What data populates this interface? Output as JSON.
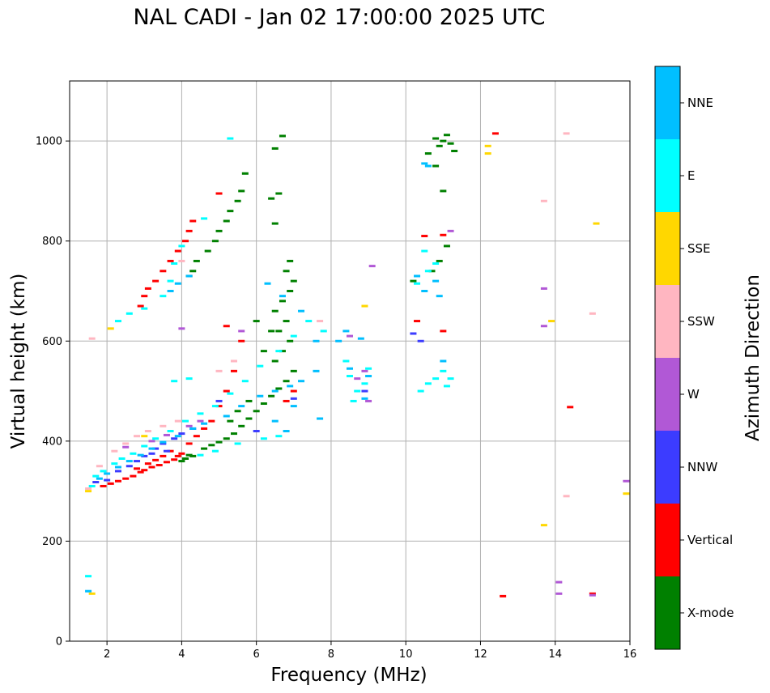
{
  "chart_data": {
    "type": "scatter",
    "title": "NAL CADI - Jan 02 17:00:00 2025 UTC",
    "xlabel": "Frequency (MHz)",
    "ylabel": "Virtual height (km)",
    "xlim": [
      1,
      16
    ],
    "ylim": [
      0,
      1120
    ],
    "xticks": [
      2,
      4,
      6,
      8,
      10,
      12,
      14,
      16
    ],
    "yticks": [
      0,
      200,
      400,
      600,
      800,
      1000
    ],
    "grid": true,
    "colorbar": {
      "label": "Azimuth Direction",
      "categories": [
        {
          "name": "X-mode",
          "color": "#008000"
        },
        {
          "name": "Vertical",
          "color": "#ff0000"
        },
        {
          "name": "NNW",
          "color": "#3c3cff"
        },
        {
          "name": "W",
          "color": "#b158d6"
        },
        {
          "name": "SSW",
          "color": "#ffb6c1"
        },
        {
          "name": "SSE",
          "color": "#ffd700"
        },
        {
          "name": "E",
          "color": "#00ffff"
        },
        {
          "name": "NNE",
          "color": "#00bfff"
        }
      ]
    },
    "series": [
      {
        "name": "X-mode",
        "points": [
          [
            4.1,
            365
          ],
          [
            4.2,
            372
          ],
          [
            4.3,
            370
          ],
          [
            4.0,
            360
          ],
          [
            4.6,
            385
          ],
          [
            4.8,
            392
          ],
          [
            5.0,
            398
          ],
          [
            5.2,
            405
          ],
          [
            5.4,
            415
          ],
          [
            5.6,
            430
          ],
          [
            5.8,
            445
          ],
          [
            6.0,
            460
          ],
          [
            6.2,
            475
          ],
          [
            6.4,
            490
          ],
          [
            6.6,
            505
          ],
          [
            6.8,
            520
          ],
          [
            7.0,
            540
          ],
          [
            6.5,
            560
          ],
          [
            6.7,
            580
          ],
          [
            6.9,
            600
          ],
          [
            6.6,
            620
          ],
          [
            6.8,
            640
          ],
          [
            6.5,
            660
          ],
          [
            6.7,
            680
          ],
          [
            6.9,
            700
          ],
          [
            7.0,
            720
          ],
          [
            6.8,
            740
          ],
          [
            6.9,
            760
          ],
          [
            6.0,
            640
          ],
          [
            6.2,
            580
          ],
          [
            6.4,
            620
          ],
          [
            5.3,
            440
          ],
          [
            5.5,
            460
          ],
          [
            5.8,
            480
          ],
          [
            4.3,
            740
          ],
          [
            4.4,
            760
          ],
          [
            4.2,
            730
          ],
          [
            4.7,
            780
          ],
          [
            4.9,
            800
          ],
          [
            5.0,
            820
          ],
          [
            5.2,
            840
          ],
          [
            5.3,
            860
          ],
          [
            5.5,
            880
          ],
          [
            5.6,
            900
          ],
          [
            5.7,
            935
          ],
          [
            6.4,
            885
          ],
          [
            6.5,
            835
          ],
          [
            6.6,
            895
          ],
          [
            6.7,
            1010
          ],
          [
            6.5,
            985
          ],
          [
            10.8,
            1005
          ],
          [
            10.9,
            990
          ],
          [
            11.0,
            1000
          ],
          [
            11.1,
            1012
          ],
          [
            11.2,
            995
          ],
          [
            10.6,
            975
          ],
          [
            10.8,
            950
          ],
          [
            11.3,
            980
          ],
          [
            11.0,
            900
          ],
          [
            11.1,
            790
          ],
          [
            10.9,
            760
          ],
          [
            10.7,
            740
          ],
          [
            10.2,
            720
          ]
        ]
      },
      {
        "name": "Vertical",
        "points": [
          [
            1.9,
            310
          ],
          [
            2.1,
            315
          ],
          [
            2.3,
            320
          ],
          [
            2.5,
            325
          ],
          [
            2.7,
            330
          ],
          [
            2.9,
            338
          ],
          [
            3.0,
            342
          ],
          [
            3.2,
            348
          ],
          [
            3.4,
            352
          ],
          [
            3.6,
            358
          ],
          [
            3.8,
            363
          ],
          [
            3.9,
            370
          ],
          [
            4.0,
            375
          ],
          [
            2.8,
            345
          ],
          [
            3.1,
            355
          ],
          [
            3.3,
            362
          ],
          [
            3.5,
            370
          ],
          [
            3.7,
            380
          ],
          [
            4.2,
            395
          ],
          [
            4.4,
            410
          ],
          [
            4.6,
            425
          ],
          [
            4.8,
            440
          ],
          [
            5.0,
            470
          ],
          [
            5.2,
            500
          ],
          [
            5.4,
            540
          ],
          [
            5.6,
            600
          ],
          [
            5.2,
            630
          ],
          [
            2.9,
            670
          ],
          [
            3.0,
            690
          ],
          [
            3.1,
            705
          ],
          [
            3.3,
            720
          ],
          [
            3.5,
            740
          ],
          [
            3.7,
            760
          ],
          [
            3.9,
            780
          ],
          [
            4.1,
            800
          ],
          [
            4.2,
            820
          ],
          [
            4.3,
            840
          ],
          [
            5.0,
            895
          ],
          [
            6.8,
            480
          ],
          [
            7.0,
            500
          ],
          [
            10.5,
            810
          ],
          [
            11.0,
            812
          ],
          [
            11.0,
            620
          ],
          [
            10.3,
            640
          ],
          [
            12.4,
            1015
          ],
          [
            12.6,
            90
          ],
          [
            14.4,
            468
          ],
          [
            15.0,
            95
          ]
        ]
      },
      {
        "name": "NNW",
        "points": [
          [
            1.7,
            318
          ],
          [
            2.0,
            322
          ],
          [
            2.3,
            340
          ],
          [
            2.6,
            350
          ],
          [
            2.8,
            360
          ],
          [
            3.0,
            370
          ],
          [
            3.3,
            385
          ],
          [
            3.5,
            395
          ],
          [
            3.8,
            405
          ],
          [
            4.0,
            415
          ],
          [
            4.3,
            425
          ],
          [
            3.6,
            380
          ],
          [
            3.2,
            375
          ],
          [
            5.0,
            480
          ],
          [
            6.0,
            420
          ],
          [
            7.0,
            485
          ],
          [
            8.9,
            500
          ],
          [
            10.2,
            615
          ],
          [
            10.4,
            600
          ]
        ]
      },
      {
        "name": "W",
        "points": [
          [
            2.5,
            388
          ],
          [
            3.2,
            400
          ],
          [
            3.6,
            412
          ],
          [
            4.2,
            430
          ],
          [
            4.5,
            440
          ],
          [
            4.0,
            625
          ],
          [
            8.5,
            610
          ],
          [
            8.7,
            525
          ],
          [
            8.9,
            540
          ],
          [
            9.0,
            480
          ],
          [
            9.1,
            750
          ],
          [
            11.2,
            820
          ],
          [
            13.7,
            705
          ],
          [
            13.7,
            630
          ],
          [
            14.1,
            118
          ],
          [
            14.1,
            95
          ],
          [
            15.0,
            92
          ],
          [
            15.9,
            320
          ],
          [
            5.6,
            620
          ]
        ]
      },
      {
        "name": "SSW",
        "points": [
          [
            1.5,
            305
          ],
          [
            1.8,
            350
          ],
          [
            2.2,
            380
          ],
          [
            2.5,
            395
          ],
          [
            2.8,
            410
          ],
          [
            3.1,
            420
          ],
          [
            3.5,
            430
          ],
          [
            3.9,
            440
          ],
          [
            1.6,
            605
          ],
          [
            4.0,
            760
          ],
          [
            5.0,
            540
          ],
          [
            5.4,
            560
          ],
          [
            7.8,
            620
          ],
          [
            7.7,
            640
          ],
          [
            13.7,
            880
          ],
          [
            14.3,
            1015
          ],
          [
            15.0,
            655
          ],
          [
            14.3,
            290
          ]
        ]
      },
      {
        "name": "SSE",
        "points": [
          [
            1.5,
            300
          ],
          [
            1.6,
            95
          ],
          [
            2.1,
            625
          ],
          [
            3.0,
            410
          ],
          [
            8.9,
            670
          ],
          [
            12.2,
            990
          ],
          [
            12.2,
            975
          ],
          [
            13.9,
            640
          ],
          [
            15.1,
            835
          ],
          [
            15.9,
            295
          ],
          [
            13.7,
            232
          ]
        ]
      },
      {
        "name": "E",
        "points": [
          [
            1.6,
            310
          ],
          [
            1.7,
            330
          ],
          [
            1.9,
            340
          ],
          [
            2.2,
            355
          ],
          [
            2.4,
            365
          ],
          [
            2.7,
            375
          ],
          [
            3.0,
            390
          ],
          [
            3.3,
            405
          ],
          [
            3.7,
            420
          ],
          [
            4.1,
            440
          ],
          [
            4.5,
            455
          ],
          [
            4.9,
            470
          ],
          [
            5.3,
            495
          ],
          [
            5.7,
            520
          ],
          [
            6.1,
            550
          ],
          [
            6.6,
            580
          ],
          [
            7.0,
            610
          ],
          [
            7.4,
            640
          ],
          [
            7.8,
            620
          ],
          [
            8.4,
            560
          ],
          [
            8.5,
            530
          ],
          [
            8.7,
            500
          ],
          [
            8.6,
            480
          ],
          [
            8.9,
            515
          ],
          [
            9.0,
            545
          ],
          [
            10.6,
            515
          ],
          [
            10.8,
            525
          ],
          [
            11.0,
            540
          ],
          [
            11.2,
            525
          ],
          [
            10.4,
            500
          ],
          [
            11.1,
            510
          ],
          [
            6.6,
            410
          ],
          [
            6.2,
            405
          ],
          [
            5.5,
            395
          ],
          [
            4.9,
            380
          ],
          [
            4.5,
            372
          ],
          [
            3.8,
            520
          ],
          [
            4.2,
            525
          ],
          [
            2.3,
            640
          ],
          [
            2.6,
            655
          ],
          [
            3.0,
            665
          ],
          [
            3.5,
            690
          ],
          [
            3.7,
            720
          ],
          [
            3.8,
            755
          ],
          [
            4.0,
            790
          ],
          [
            4.6,
            845
          ],
          [
            10.3,
            715
          ],
          [
            10.6,
            740
          ],
          [
            10.8,
            755
          ],
          [
            10.5,
            780
          ],
          [
            5.3,
            1005
          ],
          [
            1.5,
            130
          ]
        ]
      },
      {
        "name": "NNE",
        "points": [
          [
            1.8,
            325
          ],
          [
            2.0,
            335
          ],
          [
            2.3,
            348
          ],
          [
            2.6,
            360
          ],
          [
            2.9,
            372
          ],
          [
            3.2,
            385
          ],
          [
            3.5,
            398
          ],
          [
            3.9,
            410
          ],
          [
            4.3,
            425
          ],
          [
            4.6,
            435
          ],
          [
            5.2,
            450
          ],
          [
            5.6,
            470
          ],
          [
            6.1,
            490
          ],
          [
            6.5,
            500
          ],
          [
            6.9,
            510
          ],
          [
            7.2,
            520
          ],
          [
            7.6,
            540
          ],
          [
            8.2,
            600
          ],
          [
            8.4,
            620
          ],
          [
            8.8,
            605
          ],
          [
            8.5,
            545
          ],
          [
            8.9,
            485
          ],
          [
            9.0,
            530
          ],
          [
            6.3,
            715
          ],
          [
            6.7,
            690
          ],
          [
            7.2,
            660
          ],
          [
            7.6,
            600
          ],
          [
            7.7,
            445
          ],
          [
            10.3,
            730
          ],
          [
            10.5,
            700
          ],
          [
            10.8,
            720
          ],
          [
            10.9,
            690
          ],
          [
            11.0,
            560
          ],
          [
            10.5,
            955
          ],
          [
            10.6,
            950
          ],
          [
            7.0,
            470
          ],
          [
            6.5,
            440
          ],
          [
            6.8,
            420
          ],
          [
            3.7,
            700
          ],
          [
            3.9,
            715
          ],
          [
            4.2,
            730
          ],
          [
            1.5,
            100
          ]
        ]
      }
    ]
  }
}
